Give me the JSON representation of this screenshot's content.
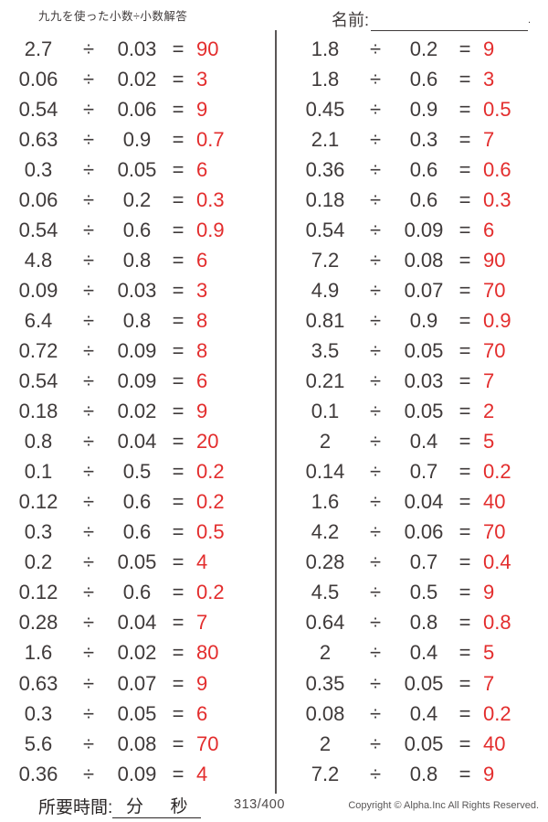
{
  "header": {
    "title": "九九を使った小数÷小数解答",
    "name_label": "名前:",
    "name_line_end_mark": "."
  },
  "problems": {
    "divide_symbol": "÷",
    "equals_symbol": "=",
    "left": [
      {
        "dividend": "2.7",
        "divisor": "0.03",
        "answer": "90"
      },
      {
        "dividend": "0.06",
        "divisor": "0.02",
        "answer": "3"
      },
      {
        "dividend": "0.54",
        "divisor": "0.06",
        "answer": "9"
      },
      {
        "dividend": "0.63",
        "divisor": "0.9",
        "answer": "0.7"
      },
      {
        "dividend": "0.3",
        "divisor": "0.05",
        "answer": "6"
      },
      {
        "dividend": "0.06",
        "divisor": "0.2",
        "answer": "0.3"
      },
      {
        "dividend": "0.54",
        "divisor": "0.6",
        "answer": "0.9"
      },
      {
        "dividend": "4.8",
        "divisor": "0.8",
        "answer": "6"
      },
      {
        "dividend": "0.09",
        "divisor": "0.03",
        "answer": "3"
      },
      {
        "dividend": "6.4",
        "divisor": "0.8",
        "answer": "8"
      },
      {
        "dividend": "0.72",
        "divisor": "0.09",
        "answer": "8"
      },
      {
        "dividend": "0.54",
        "divisor": "0.09",
        "answer": "6"
      },
      {
        "dividend": "0.18",
        "divisor": "0.02",
        "answer": "9"
      },
      {
        "dividend": "0.8",
        "divisor": "0.04",
        "answer": "20"
      },
      {
        "dividend": "0.1",
        "divisor": "0.5",
        "answer": "0.2"
      },
      {
        "dividend": "0.12",
        "divisor": "0.6",
        "answer": "0.2"
      },
      {
        "dividend": "0.3",
        "divisor": "0.6",
        "answer": "0.5"
      },
      {
        "dividend": "0.2",
        "divisor": "0.05",
        "answer": "4"
      },
      {
        "dividend": "0.12",
        "divisor": "0.6",
        "answer": "0.2"
      },
      {
        "dividend": "0.28",
        "divisor": "0.04",
        "answer": "7"
      },
      {
        "dividend": "1.6",
        "divisor": "0.02",
        "answer": "80"
      },
      {
        "dividend": "0.63",
        "divisor": "0.07",
        "answer": "9"
      },
      {
        "dividend": "0.3",
        "divisor": "0.05",
        "answer": "6"
      },
      {
        "dividend": "5.6",
        "divisor": "0.08",
        "answer": "70"
      },
      {
        "dividend": "0.36",
        "divisor": "0.09",
        "answer": "4"
      }
    ],
    "right": [
      {
        "dividend": "1.8",
        "divisor": "0.2",
        "answer": "9"
      },
      {
        "dividend": "1.8",
        "divisor": "0.6",
        "answer": "3"
      },
      {
        "dividend": "0.45",
        "divisor": "0.9",
        "answer": "0.5"
      },
      {
        "dividend": "2.1",
        "divisor": "0.3",
        "answer": "7"
      },
      {
        "dividend": "0.36",
        "divisor": "0.6",
        "answer": "0.6"
      },
      {
        "dividend": "0.18",
        "divisor": "0.6",
        "answer": "0.3"
      },
      {
        "dividend": "0.54",
        "divisor": "0.09",
        "answer": "6"
      },
      {
        "dividend": "7.2",
        "divisor": "0.08",
        "answer": "90"
      },
      {
        "dividend": "4.9",
        "divisor": "0.07",
        "answer": "70"
      },
      {
        "dividend": "0.81",
        "divisor": "0.9",
        "answer": "0.9"
      },
      {
        "dividend": "3.5",
        "divisor": "0.05",
        "answer": "70"
      },
      {
        "dividend": "0.21",
        "divisor": "0.03",
        "answer": "7"
      },
      {
        "dividend": "0.1",
        "divisor": "0.05",
        "answer": "2"
      },
      {
        "dividend": "2",
        "divisor": "0.4",
        "answer": "5"
      },
      {
        "dividend": "0.14",
        "divisor": "0.7",
        "answer": "0.2"
      },
      {
        "dividend": "1.6",
        "divisor": "0.04",
        "answer": "40"
      },
      {
        "dividend": "4.2",
        "divisor": "0.06",
        "answer": "70"
      },
      {
        "dividend": "0.28",
        "divisor": "0.7",
        "answer": "0.4"
      },
      {
        "dividend": "4.5",
        "divisor": "0.5",
        "answer": "9"
      },
      {
        "dividend": "0.64",
        "divisor": "0.8",
        "answer": "0.8"
      },
      {
        "dividend": "2",
        "divisor": "0.4",
        "answer": "5"
      },
      {
        "dividend": "0.35",
        "divisor": "0.05",
        "answer": "7"
      },
      {
        "dividend": "0.08",
        "divisor": "0.4",
        "answer": "0.2"
      },
      {
        "dividend": "2",
        "divisor": "0.05",
        "answer": "40"
      },
      {
        "dividend": "7.2",
        "divisor": "0.8",
        "answer": "9"
      }
    ]
  },
  "footer": {
    "time_label": "所要時間:",
    "minutes_label": "分",
    "seconds_label": "秒",
    "page_indicator": "313/400",
    "copyright": "Copyright © Alpha.Inc All Rights Reserved."
  },
  "colors": {
    "answer_red": "#e32d2d",
    "text_dark": "#3f3a3a",
    "divider_gray": "#5a5656"
  }
}
